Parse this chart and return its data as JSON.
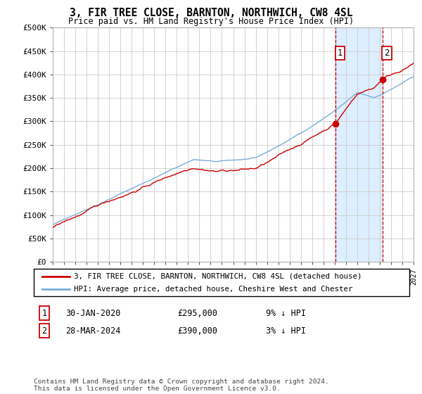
{
  "title": "3, FIR TREE CLOSE, BARNTON, NORTHWICH, CW8 4SL",
  "subtitle": "Price paid vs. HM Land Registry's House Price Index (HPI)",
  "ylim": [
    0,
    500000
  ],
  "yticks": [
    0,
    50000,
    100000,
    150000,
    200000,
    250000,
    300000,
    350000,
    400000,
    450000,
    500000
  ],
  "ytick_labels": [
    "£0",
    "£50K",
    "£100K",
    "£150K",
    "£200K",
    "£250K",
    "£300K",
    "£350K",
    "£400K",
    "£450K",
    "£500K"
  ],
  "hpi_color": "#7aaddb",
  "price_color": "#cc0000",
  "shade_color": "#ddeeff",
  "marker1_date_x": 2020.08,
  "marker1_price": 295000,
  "marker2_date_x": 2024.24,
  "marker2_price": 390000,
  "xlim_start": 1995,
  "xlim_end": 2027,
  "legend_label1": "3, FIR TREE CLOSE, BARNTON, NORTHWICH, CW8 4SL (detached house)",
  "legend_label2": "HPI: Average price, detached house, Cheshire West and Chester",
  "annotation1_label": "1",
  "annotation1_date": "30-JAN-2020",
  "annotation1_price": "£295,000",
  "annotation1_hpi": "9% ↓ HPI",
  "annotation2_label": "2",
  "annotation2_date": "28-MAR-2024",
  "annotation2_price": "£390,000",
  "annotation2_hpi": "3% ↓ HPI",
  "footer": "Contains HM Land Registry data © Crown copyright and database right 2024.\nThis data is licensed under the Open Government Licence v3.0.",
  "background_color": "#ffffff",
  "grid_color": "#cccccc"
}
